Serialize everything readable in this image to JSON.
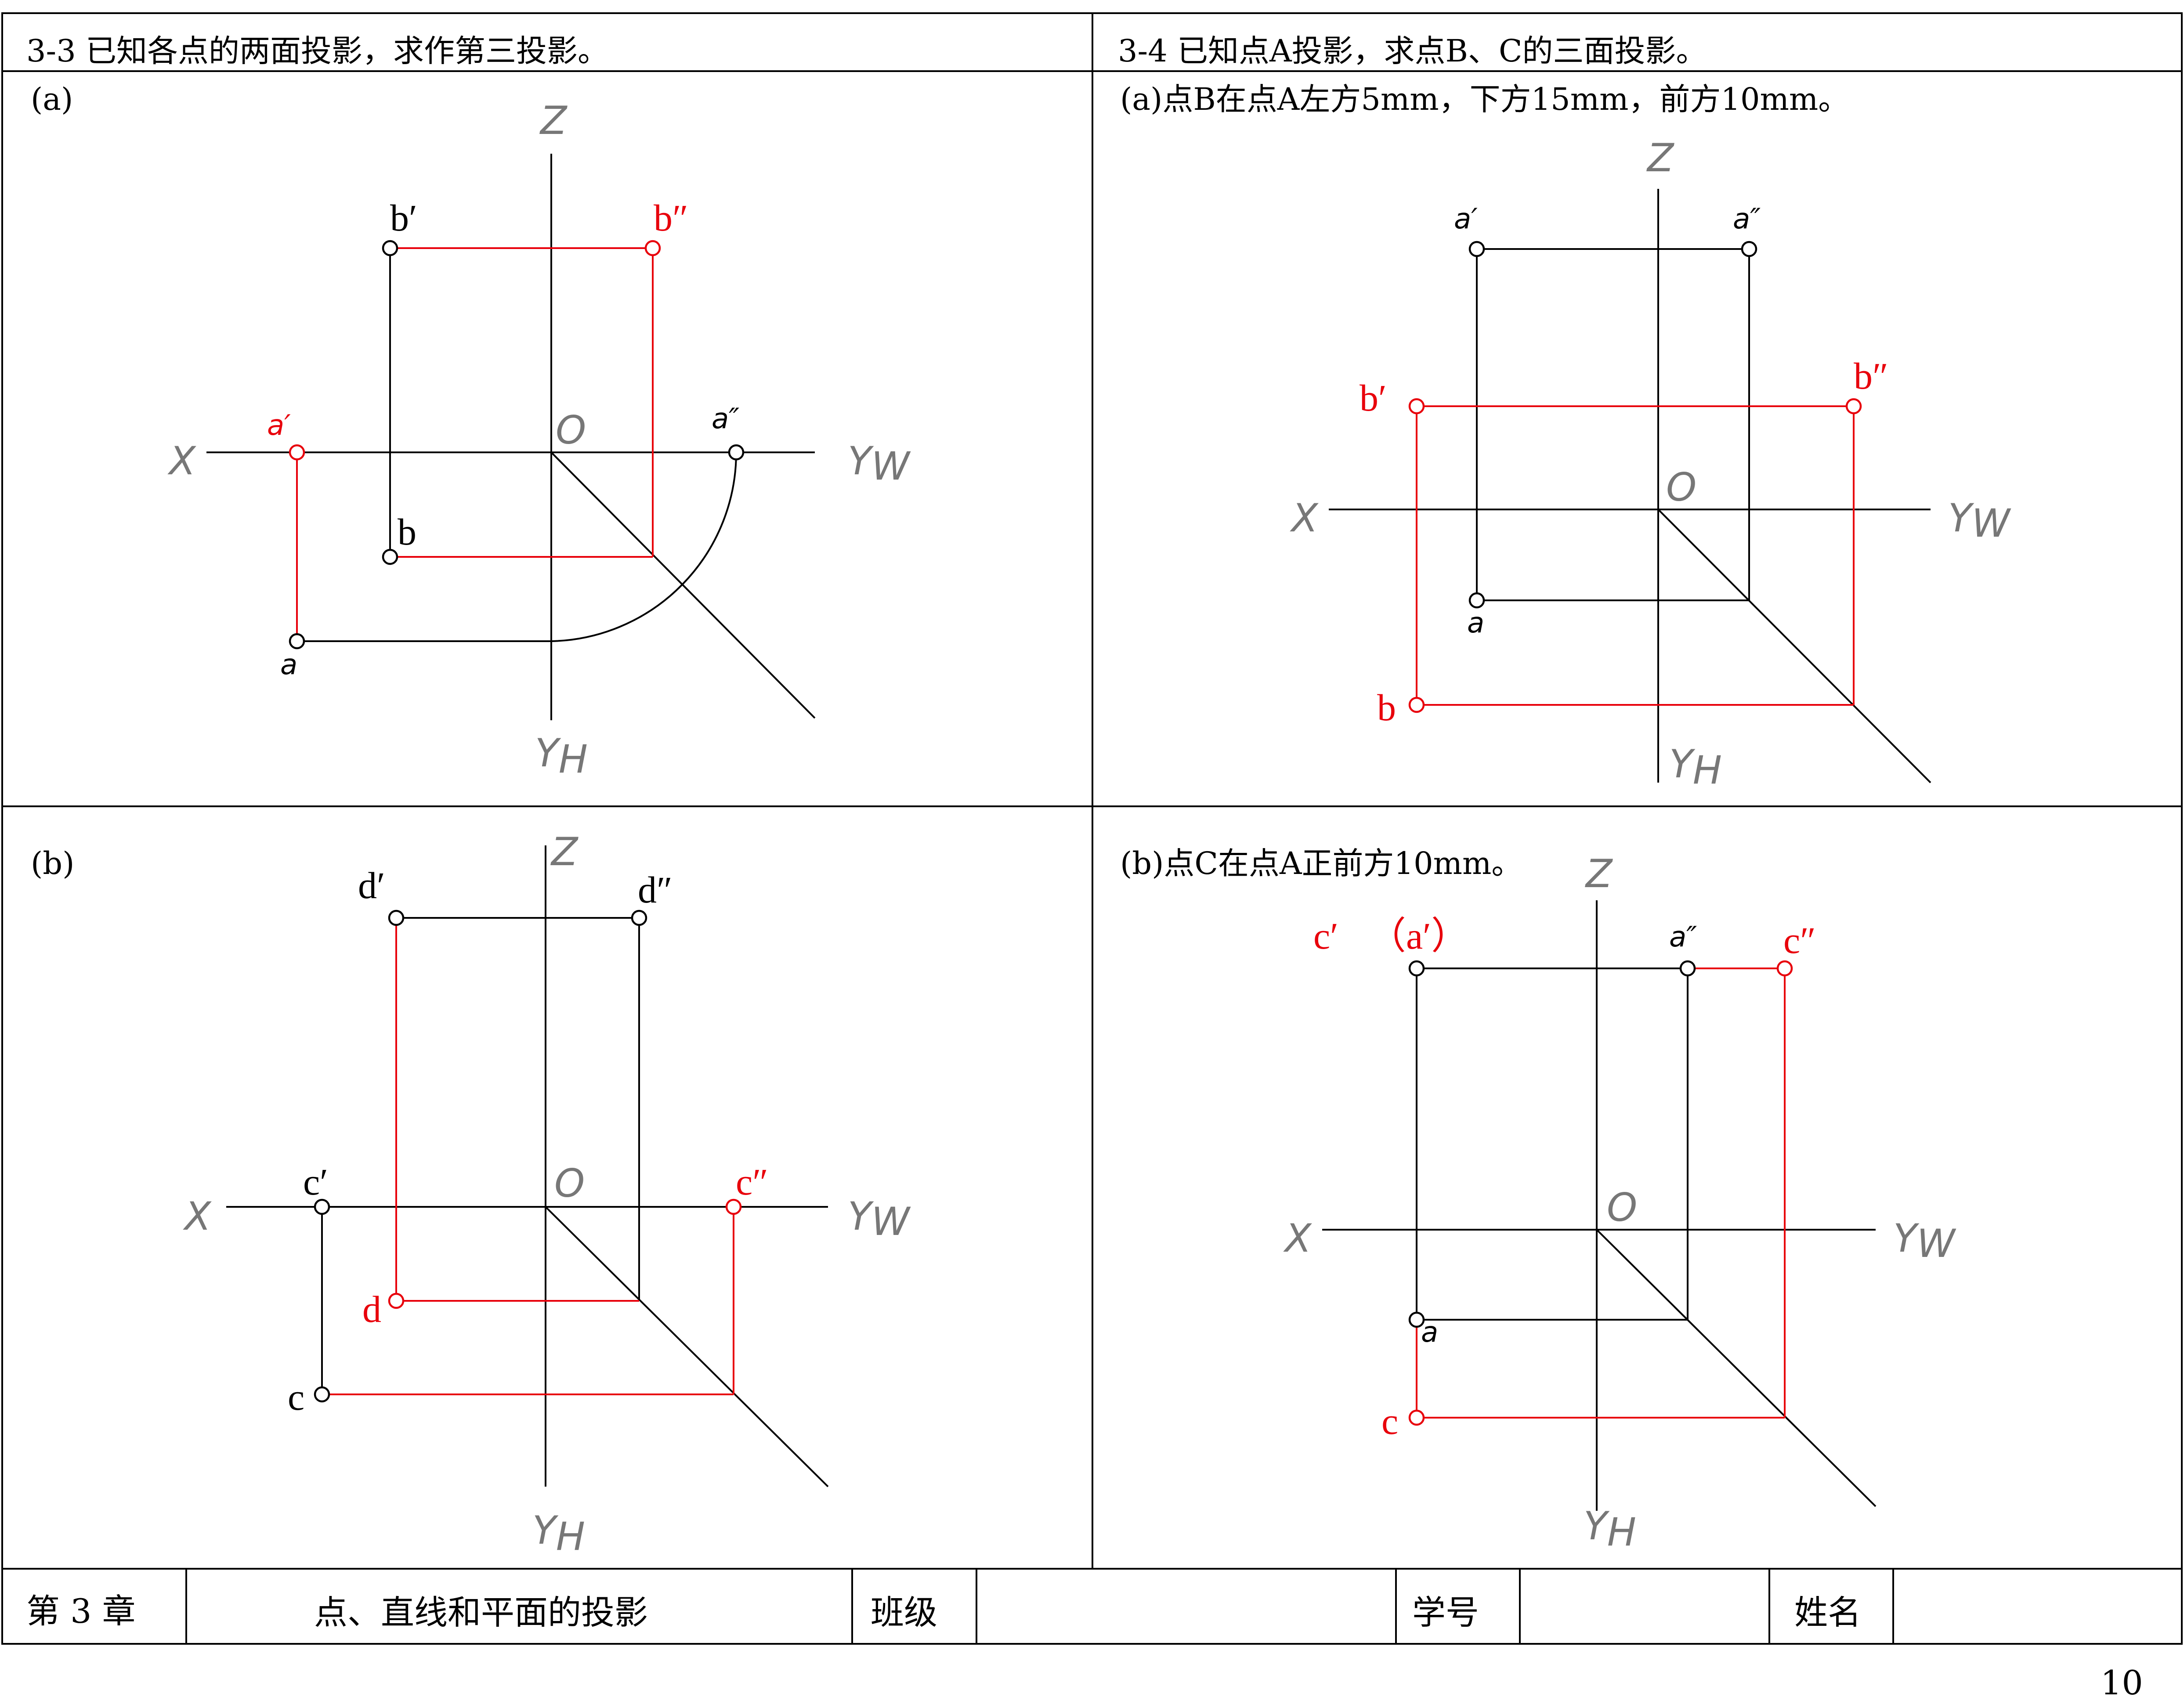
{
  "p33": {
    "title": "3-3  已知各点的两面投影，求作第三投影。",
    "sub_a": "(a)",
    "sub_b": "(b)"
  },
  "p34": {
    "title": "3-4  已知点A投影，求点B、C的三面投影。",
    "sub_a": "(a)点B在点A左方5mm，下方15mm，前方10mm。",
    "sub_b": "(b)点C在点A正前方10mm。"
  },
  "axes": {
    "z": "Z",
    "x": "X",
    "o": "O",
    "yw": "YW",
    "yw_main": "Y",
    "yw_sub": "W",
    "yh_main": "Y",
    "yh_sub": "H"
  },
  "labels": {
    "a33a": {
      "b_prime": "b′",
      "b_dprime": "b″",
      "a_prime": "a′",
      "a_dprime": "a″",
      "b": "b",
      "a": "a"
    },
    "a33b": {
      "d_prime": "d′",
      "d_dprime": "d″",
      "c_prime": "c′",
      "c_dprime": "c″",
      "d": "d",
      "c": "c"
    },
    "a34a": {
      "a_prime": "a′",
      "a_dprime": "a″",
      "b_prime": "b′",
      "b_dprime": "b″",
      "a": "a",
      "b": "b"
    },
    "a34b": {
      "c_prime": "c′",
      "a_prime_paren": "（a′）",
      "a_dprime": "a″",
      "c_dprime": "c″",
      "a": "a",
      "c": "c"
    }
  },
  "footer": {
    "chapter": "第 3 章",
    "topic": "点、直线和平面的投影",
    "class_label": "班级",
    "id_label": "学号",
    "name_label": "姓名",
    "class_value": "",
    "id_value": "",
    "name_value": ""
  },
  "page_number": "10",
  "colors": {
    "line": "#000000",
    "answer": "#e8000b"
  }
}
